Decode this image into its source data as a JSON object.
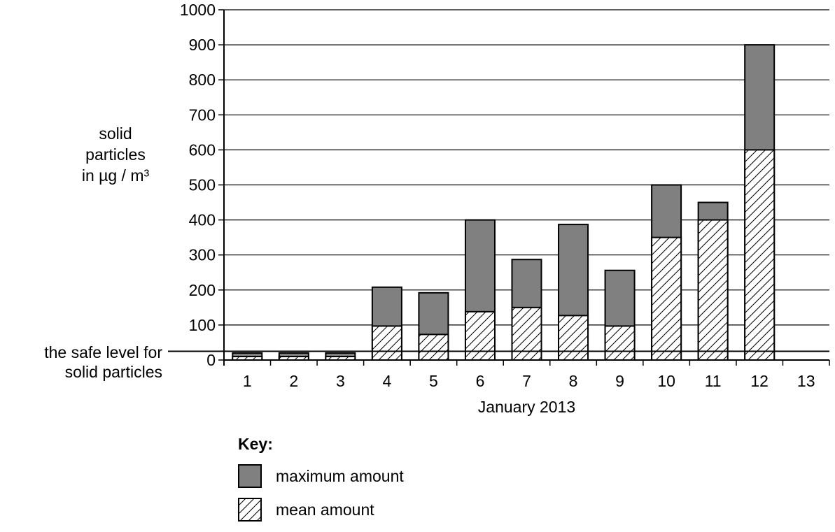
{
  "chart_data": {
    "type": "bar",
    "categories": [
      "1",
      "2",
      "3",
      "4",
      "5",
      "6",
      "7",
      "8",
      "9",
      "10",
      "11",
      "12",
      "13"
    ],
    "series": [
      {
        "name": "maximum amount",
        "values": [
          20,
          20,
          20,
          208,
          192,
          400,
          287,
          387,
          256,
          500,
          450,
          900,
          null
        ]
      },
      {
        "name": "mean amount",
        "values": [
          10,
          10,
          10,
          97,
          73,
          138,
          150,
          127,
          97,
          350,
          400,
          600,
          null
        ]
      }
    ],
    "xlabel": "January 2013",
    "ylabel_lines": [
      "solid",
      "particles",
      "in µg / m³"
    ],
    "ylim": [
      0,
      1000
    ],
    "yticks": [
      0,
      100,
      200,
      300,
      400,
      500,
      600,
      700,
      800,
      900,
      1000
    ],
    "grid": true,
    "safe_level": {
      "value": 25,
      "label_lines": [
        "the safe level for",
        "solid particles"
      ]
    },
    "legend": {
      "title": "Key:",
      "max_label": "maximum amount",
      "mean_label": "mean amount",
      "placement": "bottom"
    },
    "colors": {
      "max": "#808080",
      "mean_fill": "#ffffff",
      "stroke": "#000000"
    }
  }
}
